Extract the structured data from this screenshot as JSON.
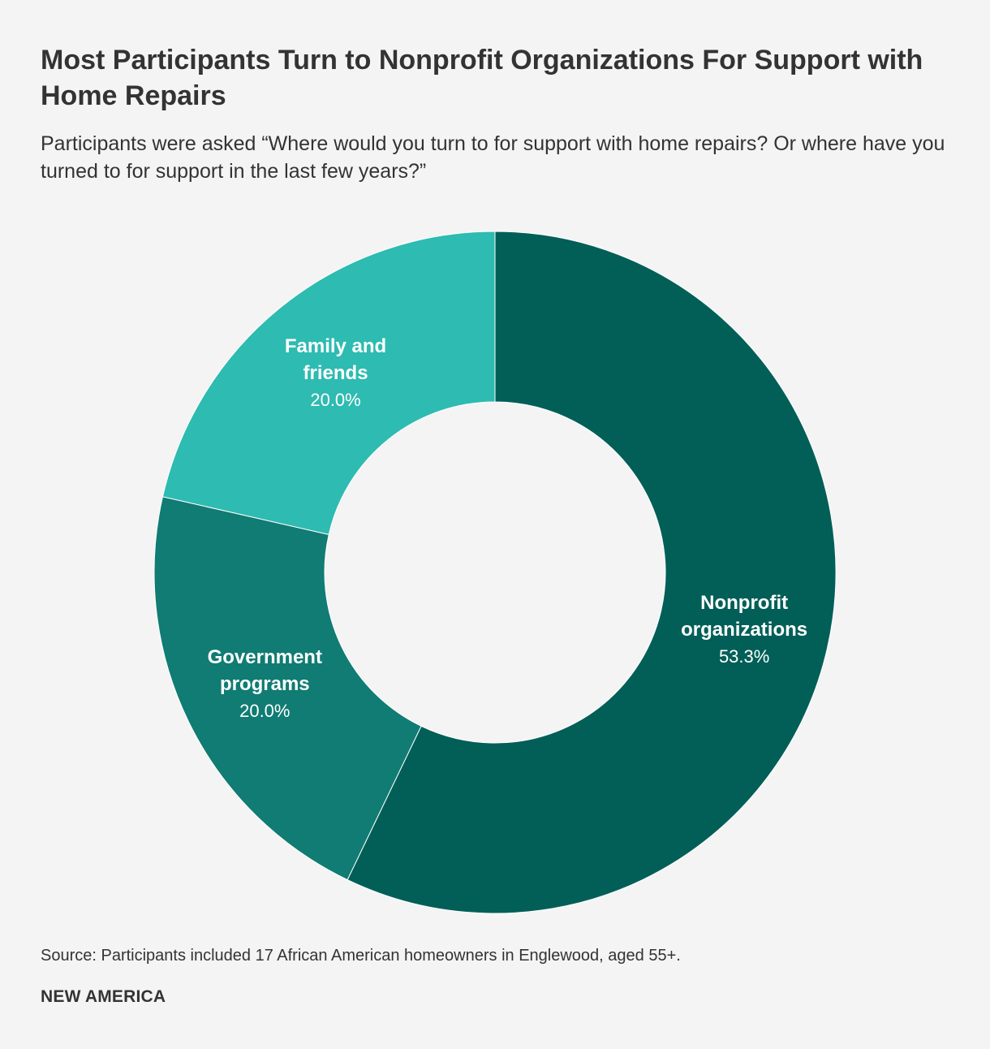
{
  "header": {
    "title": "Most Participants Turn to Nonprofit Organizations For Support with Home Repairs",
    "subtitle": "Participants were asked “Where would you turn to for support with home repairs? Or where have you turned to for support in the last few years?”"
  },
  "chart_data": {
    "type": "pie",
    "style": "donut",
    "unit": "%",
    "slices": [
      {
        "label_lines": [
          "Nonprofit",
          "organizations"
        ],
        "label": "Nonprofit organizations",
        "value": 53.3,
        "display": "53.3%",
        "color": "#025f58"
      },
      {
        "label_lines": [
          "Government",
          "programs"
        ],
        "label": "Government programs",
        "value": 20.0,
        "display": "20.0%",
        "color": "#107c73"
      },
      {
        "label_lines": [
          "Family and",
          "friends"
        ],
        "label": "Family and friends",
        "value": 20.0,
        "display": "20.0%",
        "color": "#2ebbb1"
      }
    ]
  },
  "footer": {
    "source": "Source: Participants included 17 African American homeowners in Englewood, aged 55+.",
    "brand": "NEW AMERICA"
  }
}
